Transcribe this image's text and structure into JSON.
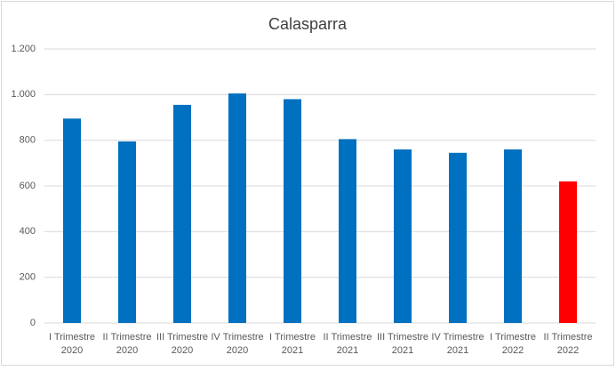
{
  "chart_data": {
    "type": "bar",
    "title": "Calasparra",
    "categories": [
      "I Trimestre 2020",
      "II Trimestre 2020",
      "III Trimestre 2020",
      "IV Trimestre 2020",
      "I Trimestre 2021",
      "II Trimestre 2021",
      "III Trimestre 2021",
      "IV Trimestre 2021",
      "I Trimestre 2022",
      "II Trimestre 2022"
    ],
    "values": [
      895,
      795,
      955,
      1005,
      980,
      805,
      760,
      745,
      760,
      620
    ],
    "colors": [
      "#0070c0",
      "#0070c0",
      "#0070c0",
      "#0070c0",
      "#0070c0",
      "#0070c0",
      "#0070c0",
      "#0070c0",
      "#0070c0",
      "#ff0000"
    ],
    "ylim": [
      0,
      1200
    ],
    "yticks": [
      0,
      200,
      400,
      600,
      800,
      {
        "value": 1000,
        "label": "1.000"
      },
      {
        "value": 1200,
        "label": "1.200"
      }
    ],
    "grid": true
  }
}
